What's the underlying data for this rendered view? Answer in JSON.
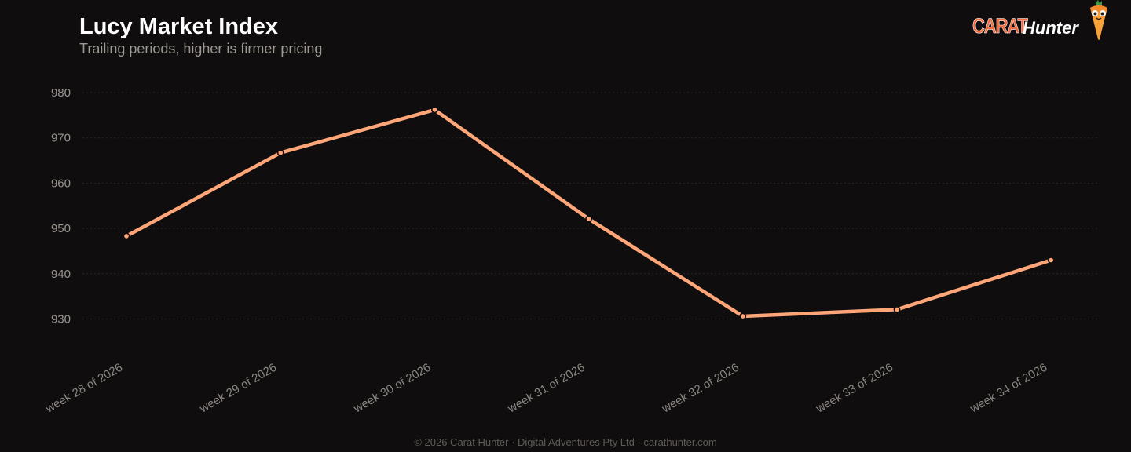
{
  "header": {
    "title": "Lucy Market Index",
    "subtitle": "Trailing periods, higher is firmer pricing"
  },
  "brand": {
    "carat": "CARAT",
    "hunter": "Hunter",
    "mascot_icon": "carrot-mascot-icon"
  },
  "chart_data": {
    "type": "line",
    "title": "Lucy Market Index",
    "subtitle": "Trailing periods, higher is firmer pricing",
    "categories": [
      "week 28 of 2026",
      "week 29 of 2026",
      "week 30 of 2026",
      "week 31 of 2026",
      "week 32 of 2026",
      "week 33 of 2026",
      "week 34 of 2026"
    ],
    "series": [
      {
        "values": [
          948.3,
          966.7,
          976.2,
          952.1,
          930.6,
          932.1,
          943.0
        ],
        "color": "#ffa679"
      }
    ],
    "y_ticks": [
      930,
      940,
      950,
      960,
      970,
      980
    ],
    "ylim": [
      920,
      980
    ],
    "grid": true,
    "legend": "none",
    "line_color": "#ffa679",
    "grid_color": "#2a2624"
  },
  "footer": {
    "text": "© 2026 Carat Hunter · Digital Adventures Pty Ltd · carathunter.com"
  }
}
